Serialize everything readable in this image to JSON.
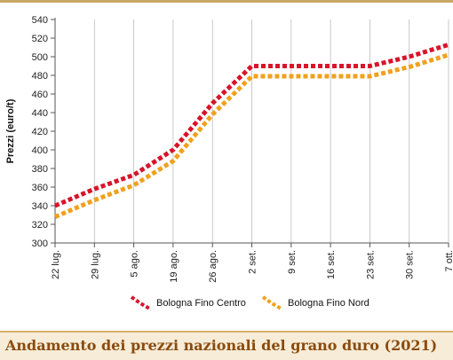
{
  "caption": "Andamento dei prezzi nazionali del grano duro (2021)",
  "chart_data": {
    "type": "line",
    "title": "",
    "xlabel": "",
    "ylabel": "Prezzi (euro/t)",
    "ylim": [
      300,
      540
    ],
    "yticks": [
      300,
      320,
      340,
      360,
      380,
      400,
      420,
      440,
      460,
      480,
      500,
      520,
      540
    ],
    "grid": "vertical",
    "legend_position": "bottom",
    "categories": [
      "22 lug.",
      "29 lug.",
      "5 ago.",
      "19 ago.",
      "26 ago.",
      "2 set.",
      "9 set.",
      "16 set.",
      "23 set.",
      "30 set.",
      "7 ott."
    ],
    "series": [
      {
        "name": "Bologna Fino Centro",
        "color": "#d8142a",
        "values": [
          340,
          358,
          373,
          400,
          450,
          490,
          490,
          490,
          490,
          500,
          513
        ]
      },
      {
        "name": "Bologna Fino Nord",
        "color": "#f0a11c",
        "values": [
          328,
          346,
          362,
          388,
          438,
          479,
          479,
          479,
          479,
          489,
          502
        ]
      }
    ]
  }
}
